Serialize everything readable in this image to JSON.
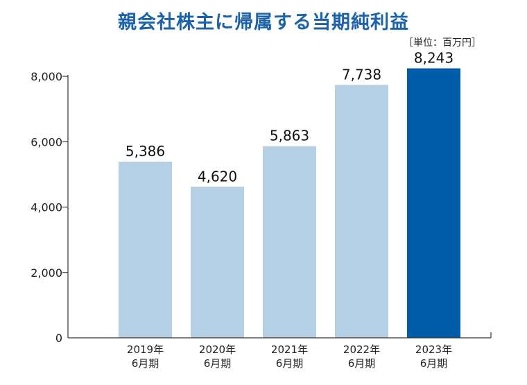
{
  "title": "親会社株主に帰属する当期純利益",
  "unit_label": "［単位：百万円］",
  "colors": {
    "title": "#1b62ad",
    "bar": "#b5cfe5",
    "highlight": "#005ba9",
    "axis": "#333333"
  },
  "chart_data": {
    "type": "bar",
    "title": "親会社株主に帰属する当期純利益",
    "categories": [
      [
        "2019年",
        "6月期"
      ],
      [
        "2020年",
        "6月期"
      ],
      [
        "2021年",
        "6月期"
      ],
      [
        "2022年",
        "6月期"
      ],
      [
        "2023年",
        "6月期"
      ]
    ],
    "values": [
      5386,
      4620,
      5863,
      7738,
      8243
    ],
    "value_labels": [
      "5,386",
      "4,620",
      "5,863",
      "7,738",
      "8,243"
    ],
    "highlight_index": 4,
    "ylim": [
      0,
      8000
    ],
    "yticks": [
      0,
      2000,
      4000,
      6000,
      8000
    ],
    "ytick_labels": [
      "0",
      "2,000",
      "4,000",
      "6,000",
      "8,000"
    ],
    "grid": false,
    "legend": "none"
  }
}
